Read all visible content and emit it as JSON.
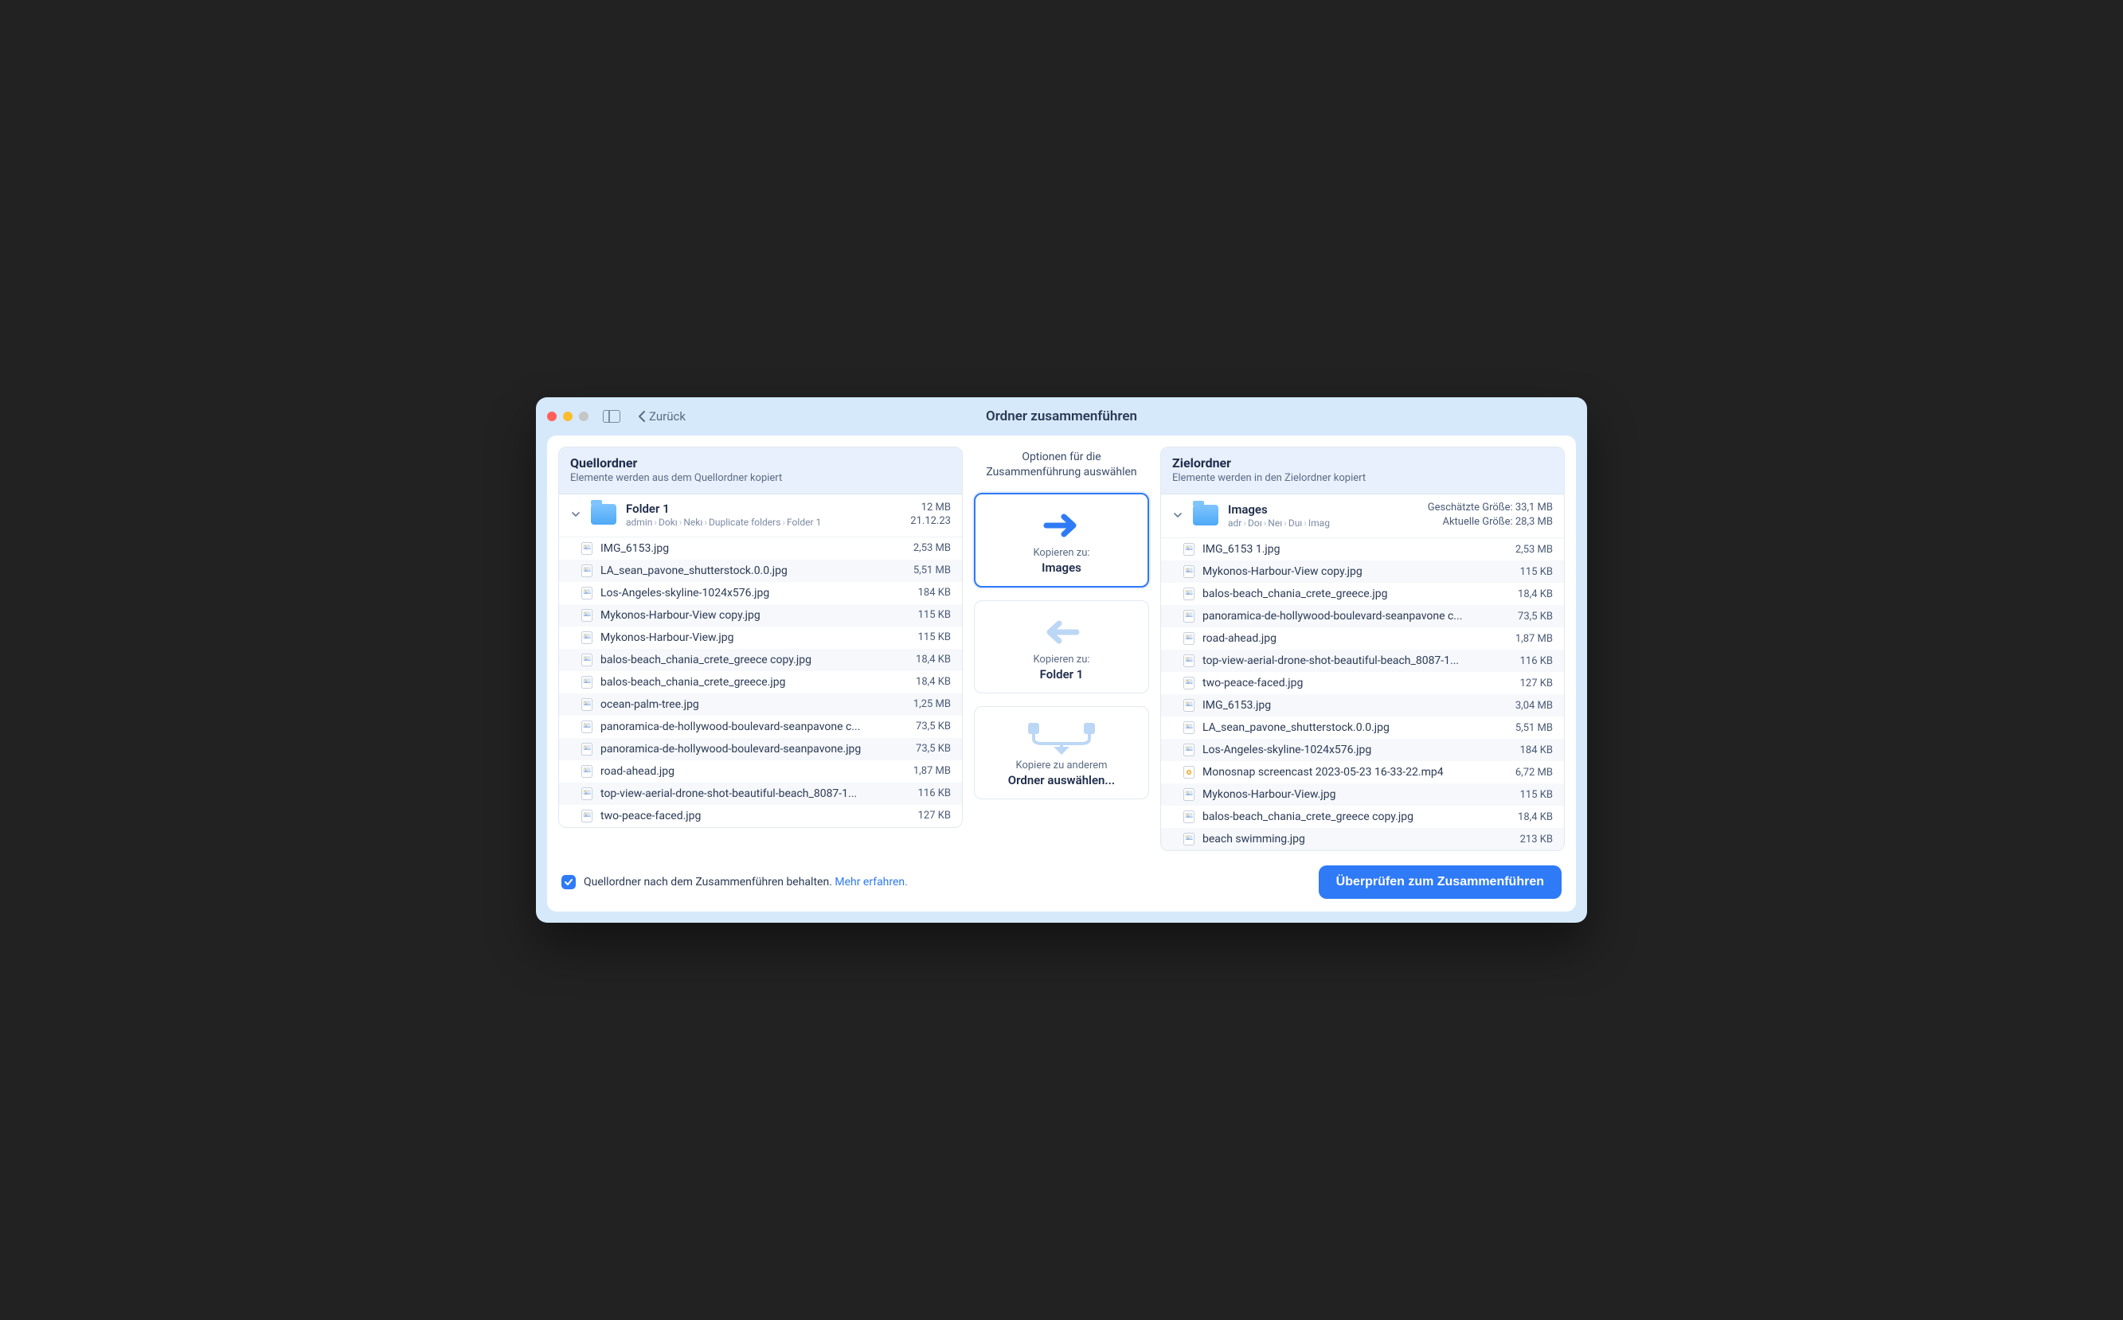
{
  "window": {
    "title": "Ordner zusammenführen",
    "back_label": "Zurück"
  },
  "source": {
    "header_title": "Quellordner",
    "header_sub": "Elemente werden aus dem Quellordner kopiert",
    "folder_name": "Folder 1",
    "breadcrumbs": [
      "admin",
      "Dokı",
      "Nekı",
      "Duplicate folders",
      "Folder 1"
    ],
    "size": "12 MB",
    "date": "21.12.23",
    "files": [
      {
        "name": "IMG_6153.jpg",
        "size": "2,53 MB",
        "type": "image"
      },
      {
        "name": "LA_sean_pavone_shutterstock.0.0.jpg",
        "size": "5,51 MB",
        "type": "image"
      },
      {
        "name": "Los-Angeles-skyline-1024x576.jpg",
        "size": "184 KB",
        "type": "image"
      },
      {
        "name": "Mykonos-Harbour-View copy.jpg",
        "size": "115 KB",
        "type": "image"
      },
      {
        "name": "Mykonos-Harbour-View.jpg",
        "size": "115 KB",
        "type": "image"
      },
      {
        "name": "balos-beach_chania_crete_greece copy.jpg",
        "size": "18,4 KB",
        "type": "image"
      },
      {
        "name": "balos-beach_chania_crete_greece.jpg",
        "size": "18,4 KB",
        "type": "image"
      },
      {
        "name": "ocean-palm-tree.jpg",
        "size": "1,25 MB",
        "type": "image"
      },
      {
        "name": "panoramica-de-hollywood-boulevard-seanpavone c...",
        "size": "73,5 KB",
        "type": "image"
      },
      {
        "name": "panoramica-de-hollywood-boulevard-seanpavone.jpg",
        "size": "73,5 KB",
        "type": "image"
      },
      {
        "name": "road-ahead.jpg",
        "size": "1,87 MB",
        "type": "image"
      },
      {
        "name": "top-view-aerial-drone-shot-beautiful-beach_8087-1...",
        "size": "116 KB",
        "type": "image"
      },
      {
        "name": "two-peace-faced.jpg",
        "size": "127 KB",
        "type": "image"
      }
    ]
  },
  "target": {
    "header_title": "Zielordner",
    "header_sub": "Elemente werden in den Zielordner kopiert",
    "folder_name": "Images",
    "breadcrumbs": [
      "adr",
      "Doı",
      "Neı",
      "Duı",
      "Imag"
    ],
    "est_label": "Geschätzte Größe: 33,1 MB",
    "cur_label": "Aktuelle Größe: 28,3 MB",
    "files": [
      {
        "name": "IMG_6153 1.jpg",
        "size": "2,53 MB",
        "type": "image"
      },
      {
        "name": "Mykonos-Harbour-View copy.jpg",
        "size": "115 KB",
        "type": "image"
      },
      {
        "name": "balos-beach_chania_crete_greece.jpg",
        "size": "18,4 KB",
        "type": "image"
      },
      {
        "name": "panoramica-de-hollywood-boulevard-seanpavone c...",
        "size": "73,5 KB",
        "type": "image"
      },
      {
        "name": "road-ahead.jpg",
        "size": "1,87 MB",
        "type": "image"
      },
      {
        "name": "top-view-aerial-drone-shot-beautiful-beach_8087-1...",
        "size": "116 KB",
        "type": "image"
      },
      {
        "name": "two-peace-faced.jpg",
        "size": "127 KB",
        "type": "image"
      },
      {
        "name": "IMG_6153.jpg",
        "size": "3,04 MB",
        "type": "image"
      },
      {
        "name": "LA_sean_pavone_shutterstock.0.0.jpg",
        "size": "5,51 MB",
        "type": "image"
      },
      {
        "name": "Los-Angeles-skyline-1024x576.jpg",
        "size": "184 KB",
        "type": "image"
      },
      {
        "name": "Monosnap screencast 2023-05-23 16-33-22.mp4",
        "size": "6,72 MB",
        "type": "video"
      },
      {
        "name": "Mykonos-Harbour-View.jpg",
        "size": "115 KB",
        "type": "image"
      },
      {
        "name": "balos-beach_chania_crete_greece copy.jpg",
        "size": "18,4 KB",
        "type": "image"
      },
      {
        "name": "beach swimming.jpg",
        "size": "213 KB",
        "type": "image"
      }
    ]
  },
  "options": {
    "title": "Optionen für die Zusammenführung auswählen",
    "copy_to_label": "Kopieren zu:",
    "opt1_target": "Images",
    "opt2_target": "Folder 1",
    "opt3_sub": "Kopiere zu anderem",
    "opt3_main": "Ordner auswählen...",
    "selected": 0
  },
  "footer": {
    "keep_text": "Quellordner nach dem Zusammenführen behalten. ",
    "learn_text": "Mehr erfahren.",
    "checked": true,
    "primary": "Überprüfen zum Zusammenführen"
  },
  "colors": {
    "window_bg": "#d5e9fa",
    "accent": "#2f7af6",
    "panel_header_bg": "#e8f0fd",
    "row_alt_bg": "#f6f8fb",
    "text_primary": "#1f2d4a",
    "text_secondary": "#5b6b85"
  }
}
